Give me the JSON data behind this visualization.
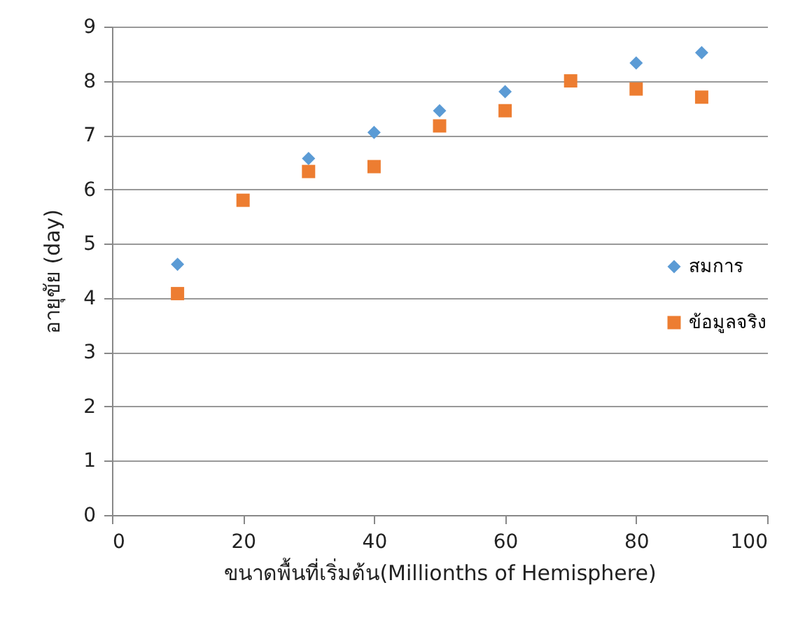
{
  "chart_data": {
    "type": "scatter",
    "xlabel": "ขนาดพื้นที่เริ่มต้น(Millionths of Hemisphere)",
    "ylabel": "อายุขัย (day)",
    "xlim": [
      0,
      100
    ],
    "xticks": [
      0,
      20,
      40,
      60,
      80,
      100
    ],
    "ylim": [
      0,
      9
    ],
    "yticks": [
      0,
      1,
      2,
      3,
      4,
      5,
      6,
      7,
      8,
      9
    ],
    "grid": "y",
    "legend": "right",
    "series": [
      {
        "name": "สมการ",
        "color": "#5b9bd5",
        "marker": "diamond",
        "x": [
          10,
          30,
          40,
          50,
          60,
          70,
          80,
          90
        ],
        "values": [
          4.62,
          6.57,
          7.05,
          7.45,
          7.8,
          null,
          8.33,
          8.52
        ]
      },
      {
        "name": "ข้อมูลจริง",
        "color": "#ed7d31",
        "marker": "square",
        "x": [
          10,
          20,
          30,
          40,
          50,
          60,
          70,
          80,
          90
        ],
        "values": [
          4.08,
          5.8,
          6.33,
          6.42,
          7.17,
          7.45,
          8.0,
          7.85,
          7.7
        ]
      }
    ]
  }
}
